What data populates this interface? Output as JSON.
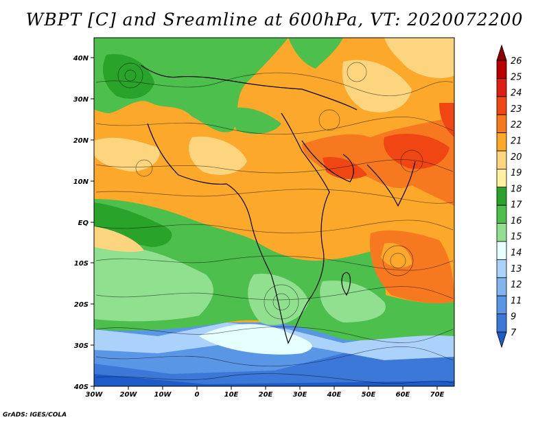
{
  "title": "WBPT [C] and Sreamline at 600hPa, VT: 2020072200",
  "credit": "GrADS: IGES/COLA",
  "lat_labels": [
    "40N",
    "30N",
    "20N",
    "10N",
    "EQ",
    "10S",
    "20S",
    "30S",
    "40S"
  ],
  "lon_labels": [
    "30W",
    "20W",
    "10W",
    "0",
    "10E",
    "20E",
    "30E",
    "40E",
    "50E",
    "60E",
    "70E"
  ],
  "colorbar": {
    "labels": [
      "26",
      "25",
      "24",
      "23",
      "22",
      "21",
      "20",
      "19",
      "18",
      "17",
      "16",
      "15",
      "14",
      "13",
      "12",
      "11",
      "9",
      "7"
    ],
    "colors": [
      "#8b0000",
      "#b90000",
      "#dc1e14",
      "#f04614",
      "#f7791f",
      "#fba82b",
      "#fdd57e",
      "#fff0a0",
      "#2aa32a",
      "#4cbf4c",
      "#90e090",
      "#e6ffff",
      "#aad2fa",
      "#82b4f0",
      "#5a96e6",
      "#3c78d8",
      "#1e5ac8"
    ]
  },
  "map": {
    "extent": {
      "lon": [
        -30,
        75
      ],
      "lat": [
        -40,
        45
      ]
    },
    "field": "wet-bulb potential temperature",
    "overlay": "streamlines",
    "level": "600hPa",
    "valid_time": "2020072200"
  }
}
